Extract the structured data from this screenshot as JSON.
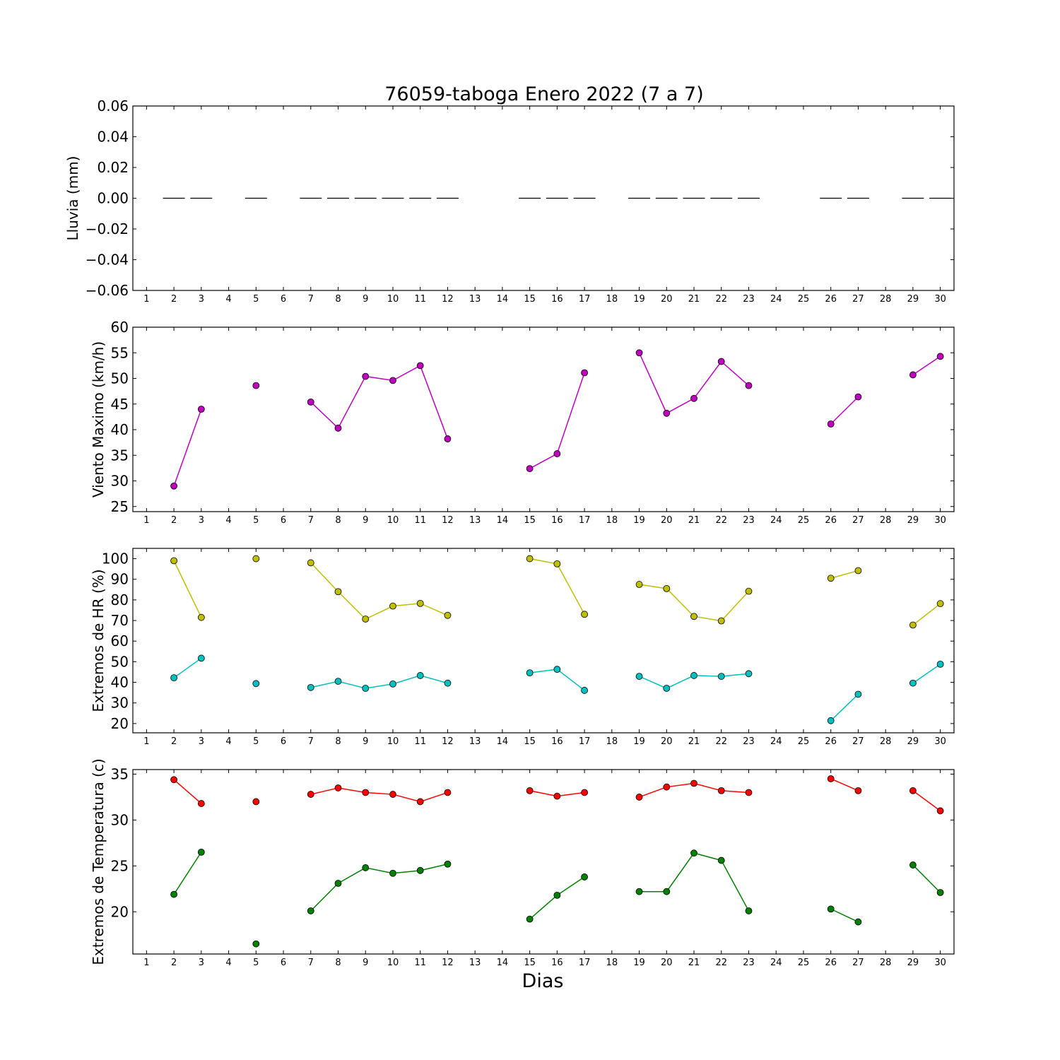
{
  "figure": {
    "title": "76059-taboga Enero 2022  (7 a 7)",
    "xlabel": "Dias"
  },
  "chart_data": [
    {
      "type": "bar",
      "ylabel": "Lluvia (mm)",
      "ylim": [
        -0.06,
        0.06
      ],
      "yticks": [
        "0.06",
        "0.04",
        "0.02",
        "0.00",
        "−0.02",
        "−0.04",
        "−0.06"
      ],
      "ytick_values": [
        0.06,
        0.04,
        0.02,
        0.0,
        -0.02,
        -0.04,
        -0.06
      ],
      "xlim": [
        0.5,
        30.5
      ],
      "xticks": [
        "1",
        "2",
        "3",
        "4",
        "5",
        "6",
        "7",
        "8",
        "9",
        "10",
        "11",
        "12",
        "13",
        "14",
        "15",
        "16",
        "17",
        "18",
        "19",
        "20",
        "21",
        "22",
        "23",
        "24",
        "25",
        "26",
        "27",
        "28",
        "29",
        "30"
      ],
      "series": [
        {
          "x": [
            2,
            3,
            5,
            7,
            8,
            9,
            10,
            11,
            12,
            15,
            16,
            17,
            19,
            20,
            21,
            22,
            23,
            26,
            27,
            29,
            30
          ],
          "values": [
            0,
            0,
            0,
            0,
            0,
            0,
            0,
            0,
            0,
            0,
            0,
            0,
            0,
            0,
            0,
            0,
            0,
            0,
            0,
            0,
            0
          ],
          "color": "#000000"
        }
      ]
    },
    {
      "type": "line",
      "ylabel": "Viento Maximo (km/h)",
      "ylim": [
        24,
        60
      ],
      "yticks": [
        "25",
        "30",
        "35",
        "40",
        "45",
        "50",
        "55",
        "60"
      ],
      "ytick_values": [
        25,
        30,
        35,
        40,
        45,
        50,
        55,
        60
      ],
      "xlim": [
        0.5,
        30.5
      ],
      "series": [
        {
          "color": "#bf00bf",
          "x": [
            2,
            3,
            5,
            7,
            8,
            9,
            10,
            11,
            12,
            15,
            16,
            17,
            19,
            20,
            21,
            22,
            23,
            26,
            27,
            29,
            30
          ],
          "values": [
            29.0,
            44.0,
            48.6,
            45.4,
            40.3,
            50.4,
            49.6,
            52.5,
            38.2,
            32.4,
            35.3,
            51.1,
            55.0,
            43.2,
            46.1,
            53.3,
            48.6,
            41.1,
            46.4,
            50.7,
            54.3
          ]
        }
      ]
    },
    {
      "type": "line",
      "ylabel": "Extremos de HR (%)",
      "ylim": [
        15.5,
        105
      ],
      "yticks": [
        "20",
        "30",
        "40",
        "50",
        "60",
        "70",
        "80",
        "90",
        "100"
      ],
      "ytick_values": [
        20,
        30,
        40,
        50,
        60,
        70,
        80,
        90,
        100
      ],
      "xlim": [
        0.5,
        30.5
      ],
      "series": [
        {
          "color": "#bfbf00",
          "x": [
            2,
            3,
            5,
            7,
            8,
            9,
            10,
            11,
            12,
            15,
            16,
            17,
            19,
            20,
            21,
            22,
            23,
            26,
            27,
            29,
            30
          ],
          "values": [
            99,
            71.5,
            100,
            98,
            84,
            70.7,
            77,
            78.3,
            72.5,
            100,
            97.5,
            73,
            87.5,
            85.5,
            72,
            69.8,
            84.2,
            90.5,
            94.2,
            67.8,
            78.2
          ]
        },
        {
          "color": "#00bfbf",
          "x": [
            2,
            3,
            5,
            7,
            8,
            9,
            10,
            11,
            12,
            15,
            16,
            17,
            19,
            20,
            21,
            22,
            23,
            26,
            27,
            29,
            30
          ],
          "values": [
            42.2,
            51.7,
            39.4,
            37.5,
            40.5,
            37.1,
            39.2,
            43.3,
            39.6,
            44.6,
            46.3,
            36.1,
            42.9,
            37.1,
            43.3,
            42.9,
            44.2,
            21.4,
            34.2,
            39.6,
            48.8
          ]
        }
      ]
    },
    {
      "type": "line",
      "ylabel": "Extremos de Temperatura (c)",
      "ylim": [
        15.4,
        35.5
      ],
      "yticks": [
        "20",
        "25",
        "30",
        "35"
      ],
      "ytick_values": [
        20,
        25,
        30,
        35
      ],
      "xlim": [
        0.5,
        30.5
      ],
      "series": [
        {
          "color": "#ff0000",
          "x": [
            2,
            3,
            5,
            7,
            8,
            9,
            10,
            11,
            12,
            15,
            16,
            17,
            19,
            20,
            21,
            22,
            23,
            26,
            27,
            29,
            30
          ],
          "values": [
            34.4,
            31.8,
            32,
            32.8,
            33.5,
            33,
            32.8,
            32,
            33,
            33.2,
            32.6,
            33,
            32.5,
            33.6,
            34,
            33.2,
            33,
            34.5,
            33.2,
            33.2,
            31
          ]
        },
        {
          "color": "#008000",
          "x": [
            2,
            3,
            5,
            7,
            8,
            9,
            10,
            11,
            12,
            15,
            16,
            17,
            19,
            20,
            21,
            22,
            23,
            26,
            27,
            29,
            30
          ],
          "values": [
            21.9,
            26.5,
            16.5,
            20.1,
            23.1,
            24.8,
            24.2,
            24.5,
            25.2,
            19.2,
            21.8,
            23.8,
            22.2,
            22.2,
            26.4,
            25.6,
            20.1,
            20.3,
            18.9,
            25.1,
            22.1
          ]
        }
      ]
    }
  ]
}
